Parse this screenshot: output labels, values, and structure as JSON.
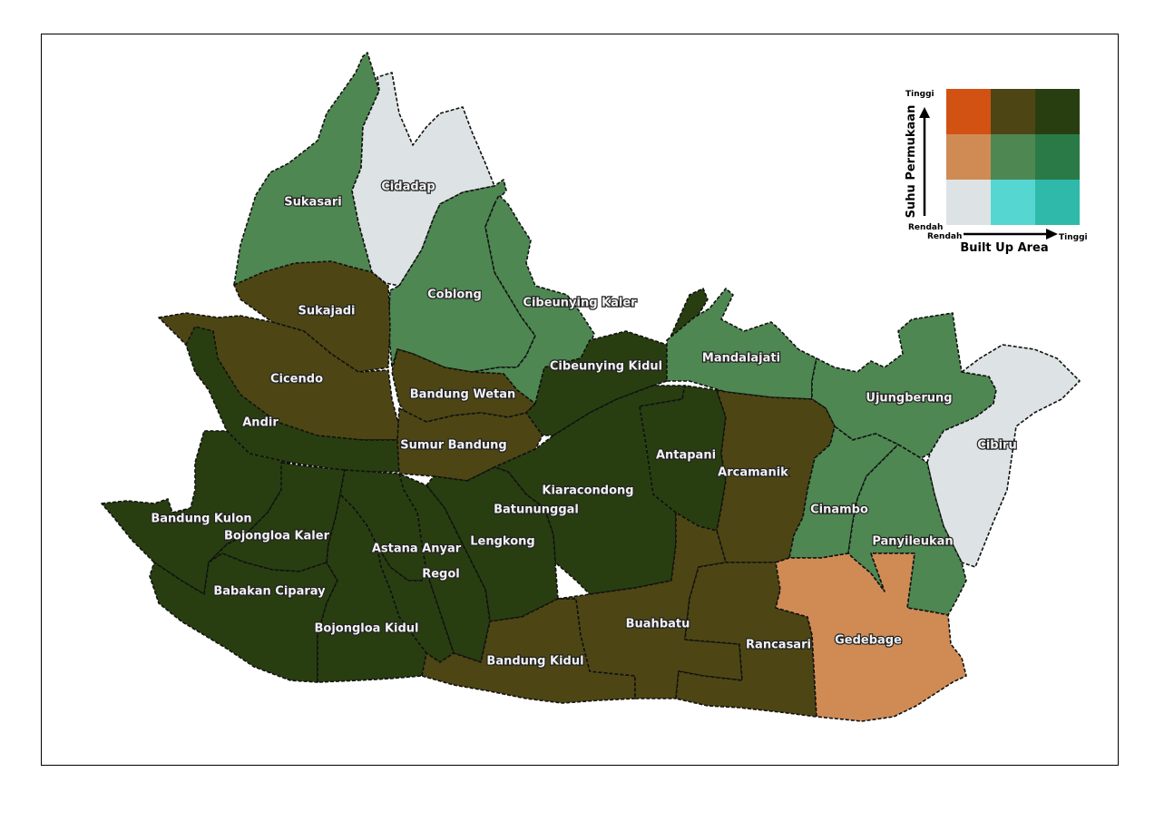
{
  "map": {
    "colors": {
      "low_low": "#dde3e4",
      "low_mid": "#55d6d1",
      "low_high": "#2eb9aa",
      "mid_low": "#d08b55",
      "mid_mid": "#4e8752",
      "mid_high": "#2a7a47",
      "high_low": "#d25214",
      "high_mid": "#4d4614",
      "high_high": "#283e11"
    },
    "districts": [
      {
        "name": "Sukasari",
        "class": "mid_mid"
      },
      {
        "name": "Cidadap",
        "class": "low_low"
      },
      {
        "name": "Coblong",
        "class": "mid_mid"
      },
      {
        "name": "Cibeunying Kaler",
        "class": "mid_mid"
      },
      {
        "name": "Sukajadi",
        "class": "high_mid"
      },
      {
        "name": "Cicendo",
        "class": "high_mid"
      },
      {
        "name": "Andir",
        "class": "high_high"
      },
      {
        "name": "Bandung Wetan",
        "class": "high_mid"
      },
      {
        "name": "Sumur Bandung",
        "class": "high_mid"
      },
      {
        "name": "Cibeunying Kidul",
        "class": "high_high"
      },
      {
        "name": "Mandalajati",
        "class": "mid_mid"
      },
      {
        "name": "Ujungberung",
        "class": "mid_mid"
      },
      {
        "name": "Cibiru",
        "class": "low_low"
      },
      {
        "name": "Antapani",
        "class": "high_high"
      },
      {
        "name": "Arcamanik",
        "class": "high_mid"
      },
      {
        "name": "Kiaracondong",
        "class": "high_high"
      },
      {
        "name": "Batununggal",
        "class": "high_high"
      },
      {
        "name": "Cinambo",
        "class": "mid_mid"
      },
      {
        "name": "Panyileukan",
        "class": "mid_mid"
      },
      {
        "name": "Bandung Kulon",
        "class": "high_high"
      },
      {
        "name": "Bojongloa Kaler",
        "class": "high_high"
      },
      {
        "name": "Astana Anyar",
        "class": "high_high"
      },
      {
        "name": "Lengkong",
        "class": "high_high"
      },
      {
        "name": "Regol",
        "class": "high_high"
      },
      {
        "name": "Babakan Ciparay",
        "class": "high_high"
      },
      {
        "name": "Bojongloa Kidul",
        "class": "high_high"
      },
      {
        "name": "Buahbatu",
        "class": "high_mid"
      },
      {
        "name": "Rancasari",
        "class": "high_mid"
      },
      {
        "name": "Gedebage",
        "class": "mid_low"
      },
      {
        "name": "Bandung Kidul",
        "class": "high_mid"
      }
    ]
  },
  "legend": {
    "y_axis_title": "Suhu Permukaan",
    "x_axis_title": "Built Up Area",
    "y_high": "Tinggi",
    "y_low": "Rendah",
    "x_low": "Rendah",
    "x_high": "Tinggi",
    "grid": [
      [
        "#d25214",
        "#4d4614",
        "#283e11"
      ],
      [
        "#d08b55",
        "#4e8752",
        "#2a7a47"
      ],
      [
        "#dde3e4",
        "#55d6d1",
        "#2eb9aa"
      ]
    ]
  }
}
